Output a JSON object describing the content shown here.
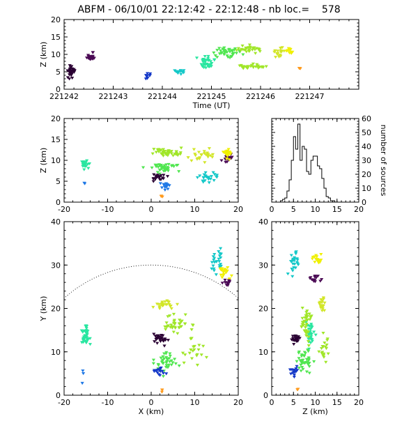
{
  "header": {
    "title": "ABFM - 06/10/01 22:12:42 - 22:12:48 - nb loc.=    578"
  },
  "colors": {
    "time_scale": [
      "#2a0033",
      "#4b0b55",
      "#1438c8",
      "#1e78e6",
      "#14c8c8",
      "#28e6a0",
      "#50e650",
      "#a0e628",
      "#d2e628",
      "#f0f000",
      "#ff9b1e"
    ]
  },
  "chart_data": [
    {
      "id": "time_height",
      "type": "scatter",
      "xlabel": "Time (UT)",
      "ylabel": "Z (km)",
      "xlim": [
        221242,
        221248
      ],
      "ylim": [
        0,
        20
      ],
      "xticks": [
        221242,
        221243,
        221244,
        221245,
        221246,
        221247
      ],
      "yticks": [
        0,
        5,
        10,
        15,
        20
      ],
      "clusters": [
        {
          "x": 221242.15,
          "y": 5.0,
          "sx": 0.08,
          "sy": 2.0,
          "n": 30,
          "c": 0
        },
        {
          "x": 221242.55,
          "y": 9.5,
          "sx": 0.1,
          "sy": 1.2,
          "n": 22,
          "c": 1
        },
        {
          "x": 221243.7,
          "y": 4.0,
          "sx": 0.05,
          "sy": 1.0,
          "n": 12,
          "c": 2
        },
        {
          "x": 221244.3,
          "y": 5.0,
          "sx": 0.15,
          "sy": 0.8,
          "n": 14,
          "c": 4
        },
        {
          "x": 221244.9,
          "y": 8.0,
          "sx": 0.2,
          "sy": 2.0,
          "n": 35,
          "c": 5
        },
        {
          "x": 221245.3,
          "y": 10.5,
          "sx": 0.25,
          "sy": 1.5,
          "n": 40,
          "c": 6
        },
        {
          "x": 221245.8,
          "y": 11.5,
          "sx": 0.25,
          "sy": 1.0,
          "n": 30,
          "c": 7
        },
        {
          "x": 221245.85,
          "y": 6.5,
          "sx": 0.25,
          "sy": 0.8,
          "n": 30,
          "c": 7
        },
        {
          "x": 221246.35,
          "y": 10.5,
          "sx": 0.15,
          "sy": 1.5,
          "n": 20,
          "c": 8
        },
        {
          "x": 221246.6,
          "y": 11.0,
          "sx": 0.08,
          "sy": 1.0,
          "n": 12,
          "c": 9
        },
        {
          "x": 221246.8,
          "y": 6.0,
          "sx": 0.02,
          "sy": 0.3,
          "n": 3,
          "c": 10
        }
      ]
    },
    {
      "id": "x_height",
      "type": "scatter",
      "xlabel": "",
      "ylabel": "Z (km)",
      "xlim": [
        -20,
        20
      ],
      "ylim": [
        0,
        20
      ],
      "xticks": [
        -20,
        -10,
        0,
        10,
        20
      ],
      "yticks": [
        0,
        5,
        10,
        15,
        20
      ],
      "clusters": [
        {
          "x": -15.0,
          "y": 9.0,
          "sx": 1.0,
          "sy": 1.0,
          "n": 22,
          "c": 5
        },
        {
          "x": -15.5,
          "y": 4.5,
          "sx": 0.3,
          "sy": 0.3,
          "n": 2,
          "c": 3
        },
        {
          "x": 3.5,
          "y": 12.0,
          "sx": 4.0,
          "sy": 0.8,
          "n": 45,
          "c": 7
        },
        {
          "x": 3.0,
          "y": 8.0,
          "sx": 3.5,
          "sy": 1.2,
          "n": 40,
          "c": 6
        },
        {
          "x": 2.0,
          "y": 6.0,
          "sx": 2.0,
          "sy": 0.8,
          "n": 20,
          "c": 0
        },
        {
          "x": 3.0,
          "y": 3.8,
          "sx": 1.0,
          "sy": 1.0,
          "n": 14,
          "c": 3
        },
        {
          "x": 13.0,
          "y": 6.0,
          "sx": 2.5,
          "sy": 1.2,
          "n": 25,
          "c": 4
        },
        {
          "x": 17.5,
          "y": 10.5,
          "sx": 1.2,
          "sy": 1.2,
          "n": 20,
          "c": 1
        },
        {
          "x": 17.5,
          "y": 11.5,
          "sx": 1.0,
          "sy": 1.5,
          "n": 20,
          "c": 9
        },
        {
          "x": 12.0,
          "y": 11.0,
          "sx": 3.0,
          "sy": 1.5,
          "n": 25,
          "c": 8
        },
        {
          "x": 2.5,
          "y": 1.5,
          "sx": 0.5,
          "sy": 0.3,
          "n": 3,
          "c": 10
        }
      ]
    },
    {
      "id": "height_histogram",
      "type": "histogram",
      "xlabel": "",
      "ylabel": "number of sources",
      "xlim": [
        0,
        20
      ],
      "ylim": [
        0,
        60
      ],
      "xticks": [
        0,
        5,
        10,
        15,
        20
      ],
      "yticks": [
        0,
        10,
        20,
        30,
        40,
        50,
        60
      ],
      "bin_width": 0.5,
      "bin_start": 2,
      "counts": [
        1,
        2,
        3,
        8,
        16,
        30,
        47,
        38,
        56,
        30,
        40,
        38,
        22,
        20,
        30,
        33,
        33,
        26,
        24,
        17,
        10,
        4,
        3,
        1,
        1
      ]
    },
    {
      "id": "plan_view",
      "type": "scatter",
      "xlabel": "X (km)",
      "ylabel": "Y (km)",
      "xlim": [
        -20,
        20
      ],
      "ylim": [
        0,
        40
      ],
      "xticks": [
        -20,
        -10,
        0,
        10,
        20
      ],
      "yticks": [
        0,
        10,
        20,
        30,
        40
      ],
      "range_ring": {
        "center": [
          0,
          0
        ],
        "radius_km": 30
      },
      "clusters": [
        {
          "x": -15.0,
          "y": 14.0,
          "sx": 1.0,
          "sy": 2.5,
          "n": 40,
          "c": 5
        },
        {
          "x": -15.5,
          "y": 4.0,
          "sx": 0.4,
          "sy": 2.0,
          "n": 3,
          "c": 3
        },
        {
          "x": 2.0,
          "y": 13.0,
          "sx": 1.8,
          "sy": 1.3,
          "n": 30,
          "c": 0
        },
        {
          "x": 3.0,
          "y": 21.0,
          "sx": 2.5,
          "sy": 1.0,
          "n": 25,
          "c": 8
        },
        {
          "x": 6.0,
          "y": 16.0,
          "sx": 3.0,
          "sy": 2.5,
          "n": 40,
          "c": 7
        },
        {
          "x": 3.0,
          "y": 8.0,
          "sx": 2.5,
          "sy": 2.5,
          "n": 40,
          "c": 6
        },
        {
          "x": 2.0,
          "y": 5.5,
          "sx": 1.2,
          "sy": 1.0,
          "n": 15,
          "c": 2
        },
        {
          "x": 2.5,
          "y": 1.0,
          "sx": 0.4,
          "sy": 0.4,
          "n": 3,
          "c": 10
        },
        {
          "x": 15.0,
          "y": 31.0,
          "sx": 1.5,
          "sy": 2.5,
          "n": 25,
          "c": 4
        },
        {
          "x": 17.0,
          "y": 28.5,
          "sx": 1.5,
          "sy": 1.5,
          "n": 20,
          "c": 9
        },
        {
          "x": 17.5,
          "y": 26.0,
          "sx": 1.0,
          "sy": 1.0,
          "n": 15,
          "c": 1
        },
        {
          "x": 10.0,
          "y": 10.0,
          "sx": 2.5,
          "sy": 3.0,
          "n": 20,
          "c": 7
        }
      ]
    },
    {
      "id": "height_plan",
      "type": "scatter",
      "xlabel": "Z (km)",
      "ylabel": "",
      "xlim": [
        0,
        20
      ],
      "ylim": [
        0,
        40
      ],
      "xticks": [
        0,
        5,
        10,
        15,
        20
      ],
      "yticks": [
        0,
        10,
        20,
        30,
        40
      ],
      "clusters": [
        {
          "x": 9.0,
          "y": 14.0,
          "sx": 1.0,
          "sy": 2.5,
          "n": 35,
          "c": 5
        },
        {
          "x": 5.5,
          "y": 13.0,
          "sx": 1.0,
          "sy": 1.2,
          "n": 30,
          "c": 0
        },
        {
          "x": 11.5,
          "y": 21.0,
          "sx": 0.8,
          "sy": 1.5,
          "n": 20,
          "c": 8
        },
        {
          "x": 8.0,
          "y": 17.0,
          "sx": 1.2,
          "sy": 4.0,
          "n": 40,
          "c": 7
        },
        {
          "x": 7.5,
          "y": 8.0,
          "sx": 2.0,
          "sy": 2.5,
          "n": 40,
          "c": 6
        },
        {
          "x": 5.0,
          "y": 5.5,
          "sx": 1.0,
          "sy": 1.2,
          "n": 15,
          "c": 2
        },
        {
          "x": 6.0,
          "y": 1.5,
          "sx": 0.5,
          "sy": 0.5,
          "n": 3,
          "c": 10
        },
        {
          "x": 5.0,
          "y": 30.5,
          "sx": 1.0,
          "sy": 2.5,
          "n": 25,
          "c": 4
        },
        {
          "x": 10.5,
          "y": 31.0,
          "sx": 1.2,
          "sy": 1.5,
          "n": 20,
          "c": 9
        },
        {
          "x": 10.0,
          "y": 27.0,
          "sx": 1.5,
          "sy": 1.0,
          "n": 15,
          "c": 1
        },
        {
          "x": 12.0,
          "y": 11.0,
          "sx": 1.0,
          "sy": 3.5,
          "n": 20,
          "c": 7
        }
      ]
    }
  ]
}
